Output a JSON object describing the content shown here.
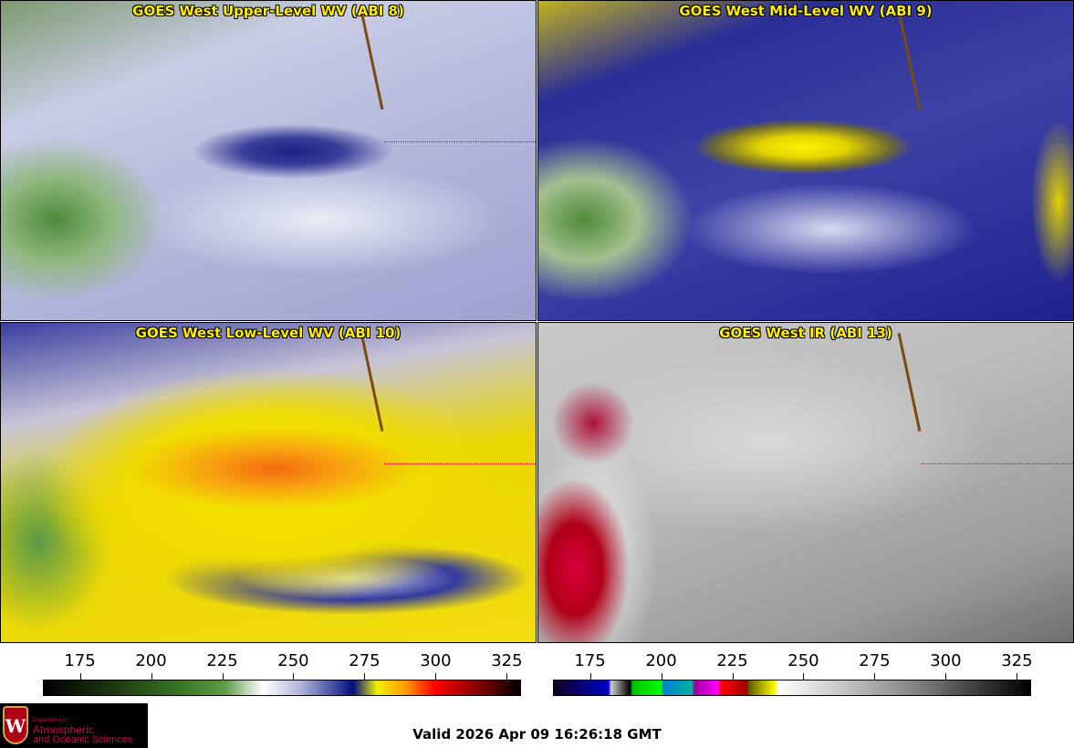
{
  "panels": [
    {
      "title": "GOES West Upper-Level WV (ABI 8)"
    },
    {
      "title": "GOES West Mid-Level WV (ABI 9)"
    },
    {
      "title": "GOES West Low-Level WV (ABI 10)"
    },
    {
      "title": "GOES West IR (ABI 13)"
    }
  ],
  "colorbars": [
    {
      "name": "water-vapor",
      "ticks": [
        "175",
        "200",
        "225",
        "250",
        "275",
        "300",
        "325"
      ],
      "range": [
        162,
        330
      ]
    },
    {
      "name": "infrared",
      "ticks": [
        "175",
        "200",
        "225",
        "250",
        "275",
        "300",
        "325"
      ],
      "range": [
        162,
        330
      ]
    }
  ],
  "logo": {
    "line1": "Department of",
    "line2": "Atmospheric",
    "line3": "and Oceanic Sciences",
    "emblem": "W"
  },
  "valid_time": "Valid 2026 Apr 09 16:26:18 GMT"
}
